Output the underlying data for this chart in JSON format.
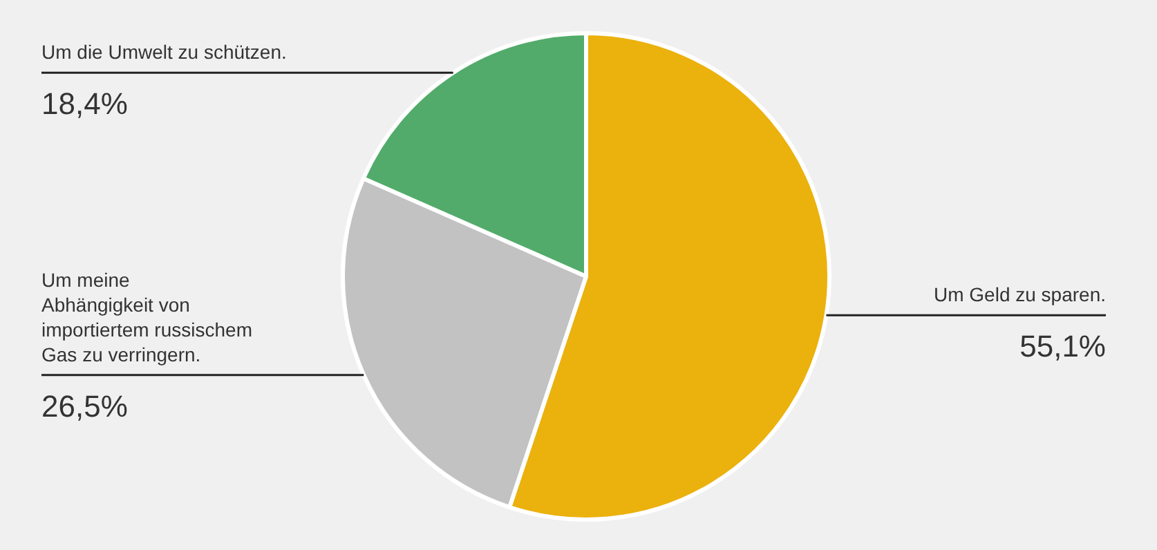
{
  "chart_data": {
    "type": "pie",
    "categories": [
      "Um Geld zu sparen.",
      "Um meine\nAbhängigkeit von\nimportiertem russischem\nGas zu verringern.",
      "Um die Umwelt zu schützen."
    ],
    "values": [
      55.1,
      26.5,
      18.4
    ],
    "value_labels": [
      "55,1%",
      "26,5%",
      "18,4%"
    ],
    "colors": [
      "#ebb10d",
      "#c2c2c2",
      "#52ab6a"
    ]
  }
}
